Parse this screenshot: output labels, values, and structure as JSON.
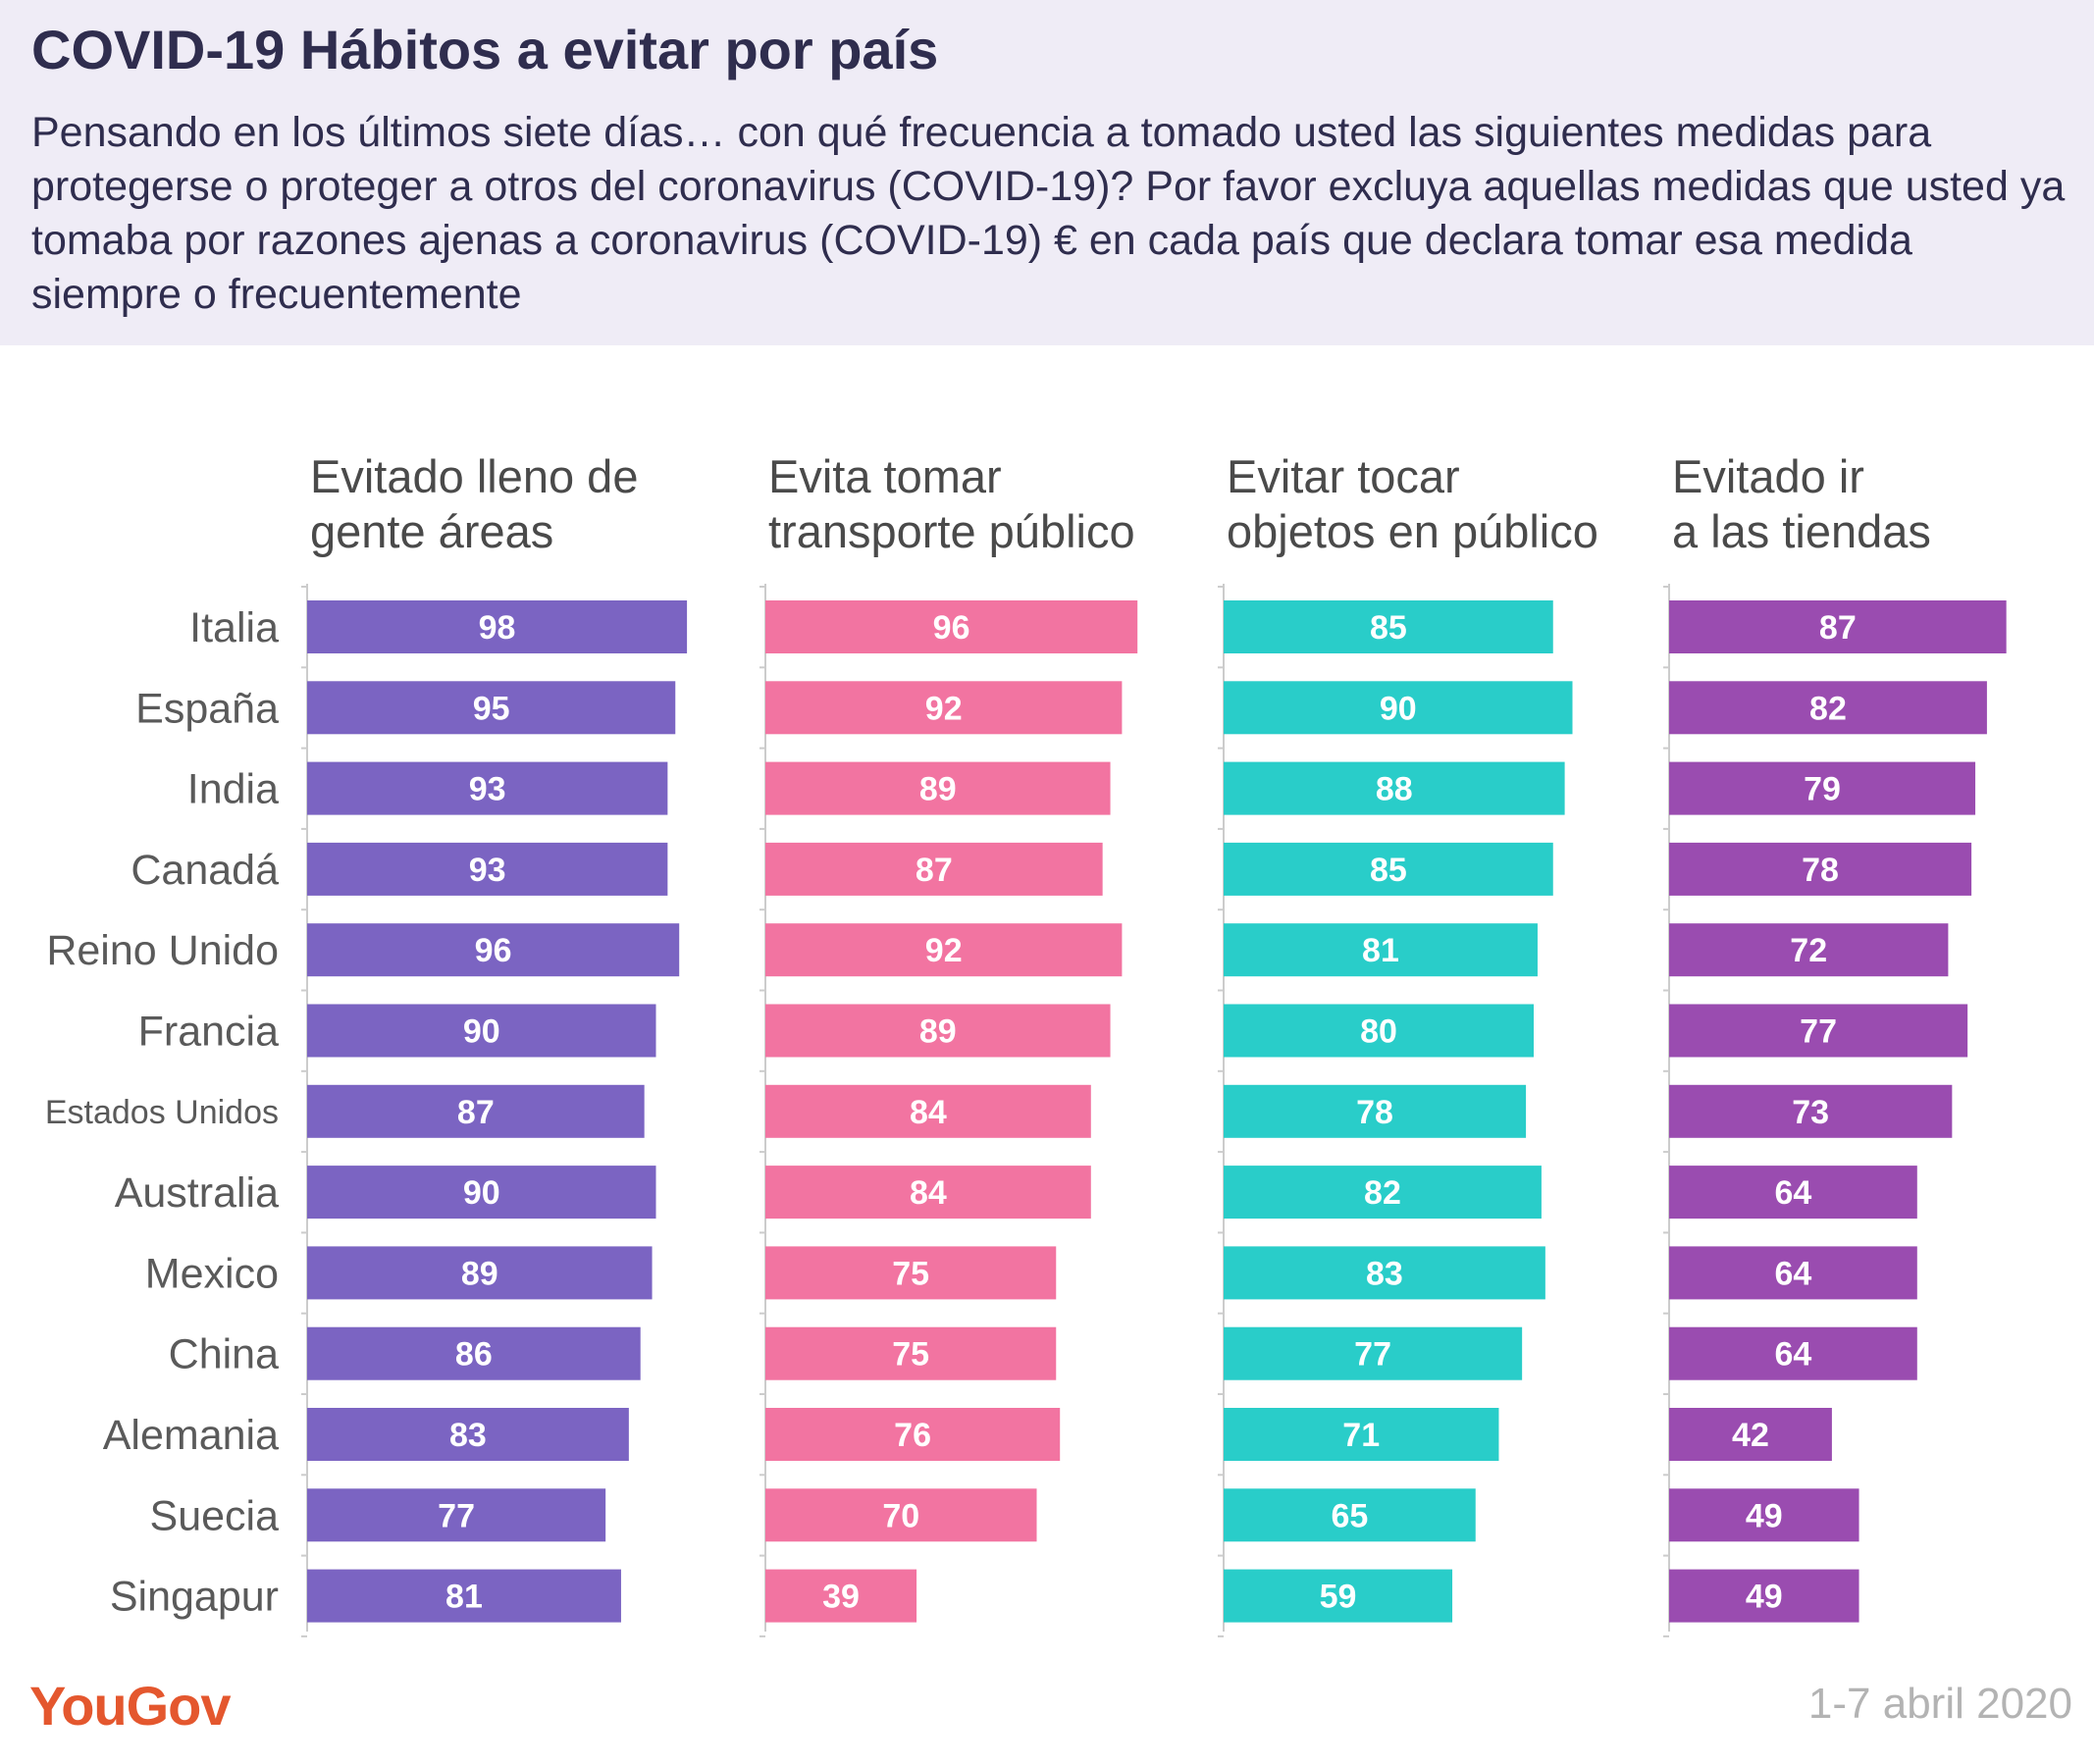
{
  "title": "COVID-19 Hábitos a evitar por país",
  "subtitle": "Pensando en los últimos siete días… con qué frecuencia a tomado usted las siguientes medidas para protegerse o proteger a otros del coronavirus (COVID-19)? Por favor excluya aquellas medidas que usted ya tomaba por razones ajenas a coronavirus (COVID-19) € en cada país que declara tomar esa medida siempre o frecuentemente",
  "source_logo": "YouGov",
  "date": "1-7 abril 2020",
  "chart_data": {
    "type": "bar",
    "orientation": "horizontal",
    "xlim": [
      0,
      100
    ],
    "categories": [
      "Italia",
      "España",
      "India",
      "Canadá",
      "Reino Unido",
      "Francia",
      "Estados Unidos",
      "Australia",
      "Mexico",
      "China",
      "Alemania",
      "Suecia",
      "Singapur"
    ],
    "series": [
      {
        "name_lines": [
          "Evitado lleno de",
          "gente áreas"
        ],
        "color": "#7b64c2",
        "values": [
          98,
          95,
          93,
          93,
          96,
          90,
          87,
          90,
          89,
          86,
          83,
          77,
          81
        ]
      },
      {
        "name_lines": [
          "Evita tomar",
          "transporte público"
        ],
        "color": "#f274a1",
        "values": [
          96,
          92,
          89,
          87,
          92,
          89,
          84,
          84,
          75,
          75,
          76,
          70,
          39
        ]
      },
      {
        "name_lines": [
          "Evitar tocar",
          "objetos en público"
        ],
        "color": "#29cdc9",
        "values": [
          85,
          90,
          88,
          85,
          81,
          80,
          78,
          82,
          83,
          77,
          71,
          65,
          59
        ]
      },
      {
        "name_lines": [
          "Evitado ir",
          "a las tiendas"
        ],
        "color": "#9a4cb0",
        "values": [
          87,
          82,
          79,
          78,
          72,
          77,
          73,
          64,
          64,
          64,
          42,
          49,
          49
        ]
      }
    ]
  }
}
